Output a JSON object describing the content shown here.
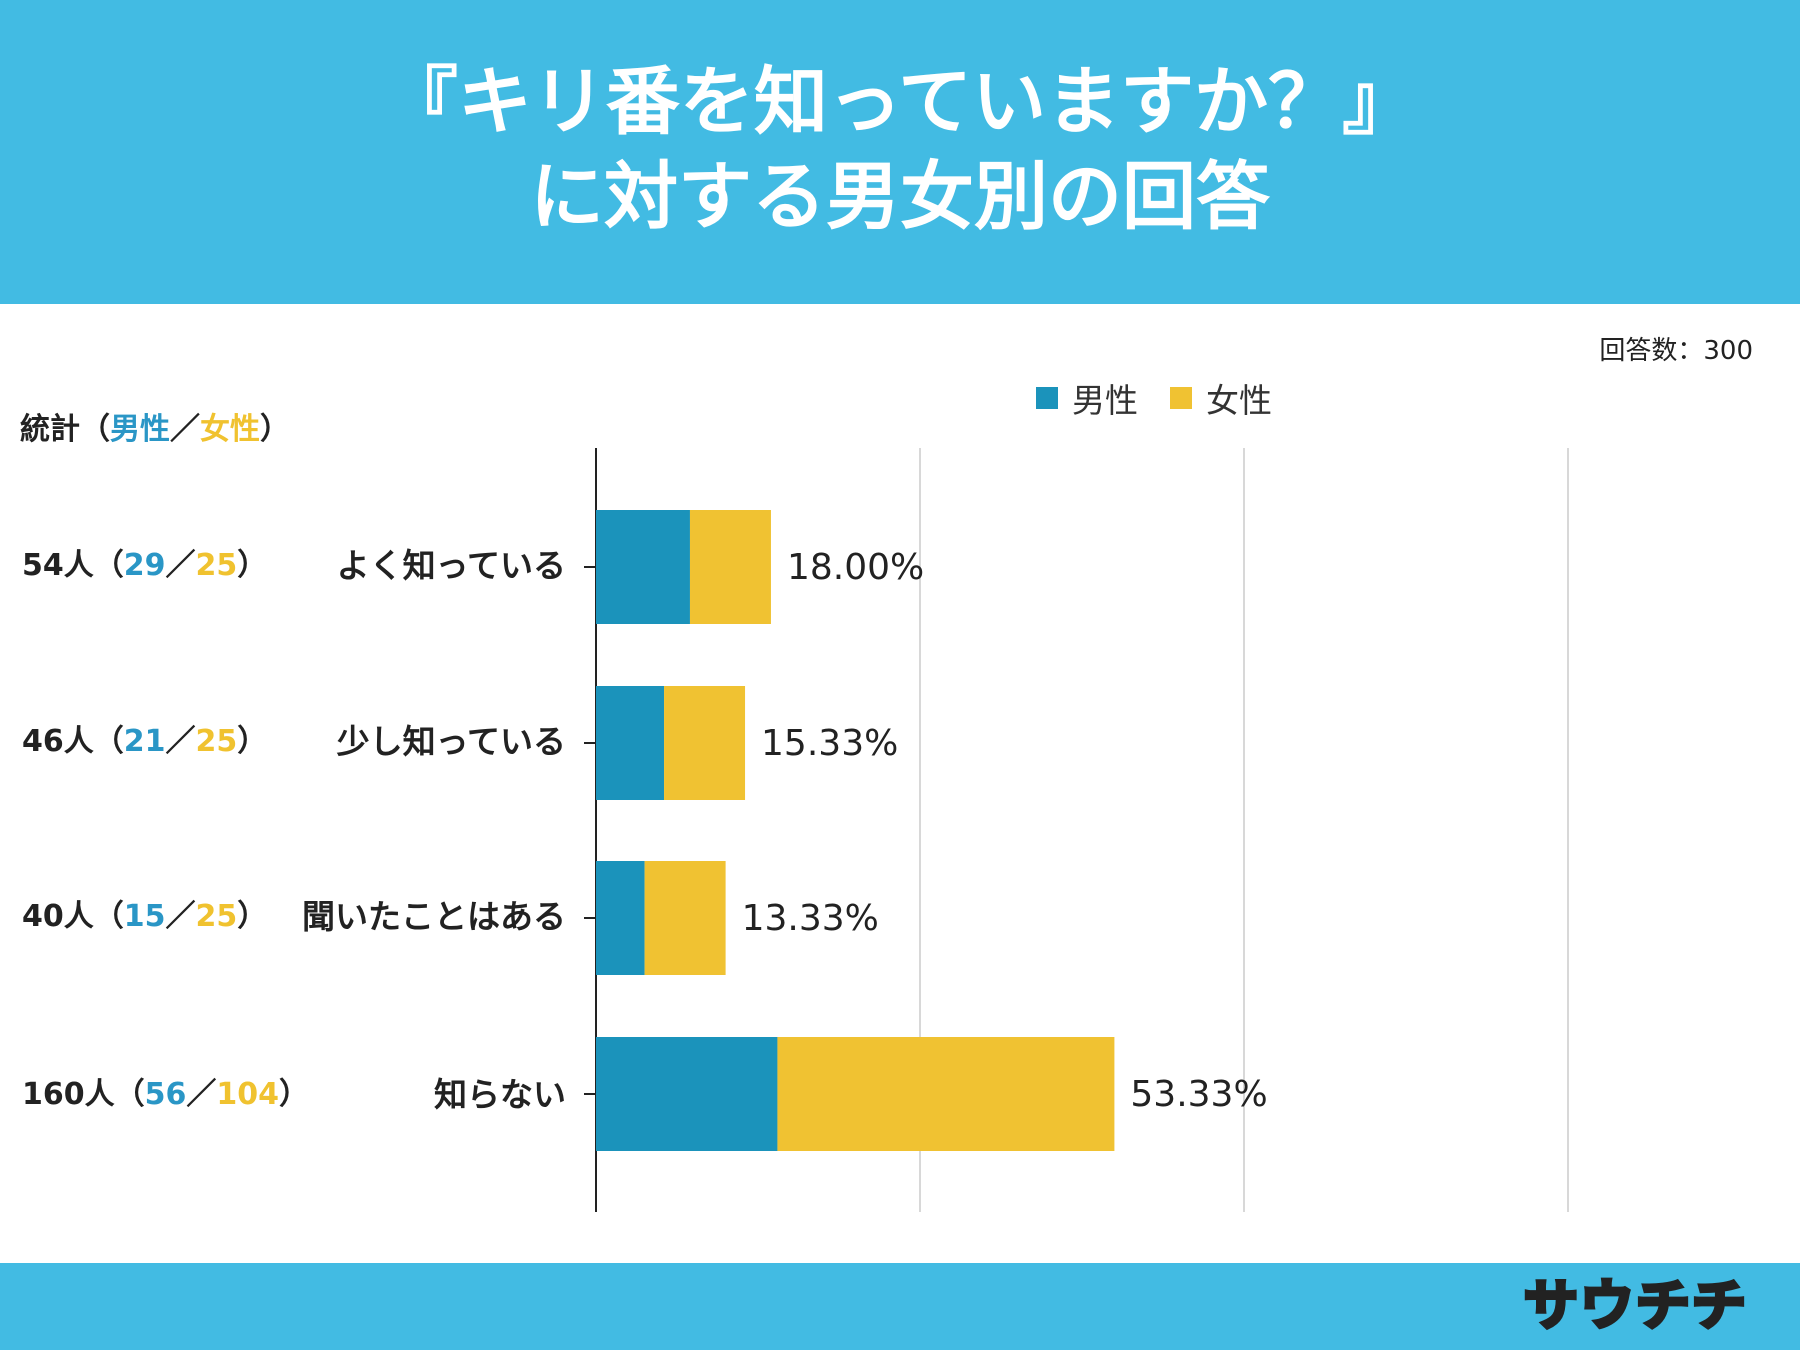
{
  "header": {
    "title_line1": "『キリ番を知っていますか？』",
    "title_line2": "に対する男女別の回答"
  },
  "respondents_label": "回答数：300",
  "stats_header": {
    "prefix": "統計（",
    "male": "男性",
    "sep": "／",
    "female": "女性",
    "suffix": "）"
  },
  "legend": {
    "male": "男性",
    "female": "女性"
  },
  "colors": {
    "header_bg": "#42bbe3",
    "male": "#1b93bb",
    "female": "#f0c232",
    "grid": "#cccccc",
    "axis": "#222222"
  },
  "chart_data": {
    "type": "bar",
    "orientation": "horizontal",
    "stacked": true,
    "categories": [
      "よく知っている",
      "少し知っている",
      "聞いたことはある",
      "知らない"
    ],
    "series": [
      {
        "name": "男性",
        "values": [
          29,
          21,
          15,
          56
        ]
      },
      {
        "name": "女性",
        "values": [
          25,
          25,
          25,
          104
        ]
      }
    ],
    "totals": [
      54,
      46,
      40,
      160
    ],
    "percent_labels": [
      "18.00%",
      "15.33%",
      "13.33%",
      "53.33%"
    ],
    "total_respondents": 300,
    "xlim": [
      0,
      300
    ],
    "grid": true,
    "legend_position": "top"
  },
  "stats_rows": [
    {
      "total": "54人",
      "open": "（",
      "male": "29",
      "sep": "／",
      "female": "25",
      "close": "）"
    },
    {
      "total": "46人",
      "open": "（",
      "male": "21",
      "sep": "／",
      "female": "25",
      "close": "）"
    },
    {
      "total": "40人",
      "open": "（",
      "male": "15",
      "sep": "／",
      "female": "25",
      "close": "）"
    },
    {
      "total": "160人",
      "open": "（",
      "male": "56",
      "sep": "／",
      "female": "104",
      "close": "）"
    }
  ],
  "footer": {
    "logo_text": "サウチチ"
  }
}
